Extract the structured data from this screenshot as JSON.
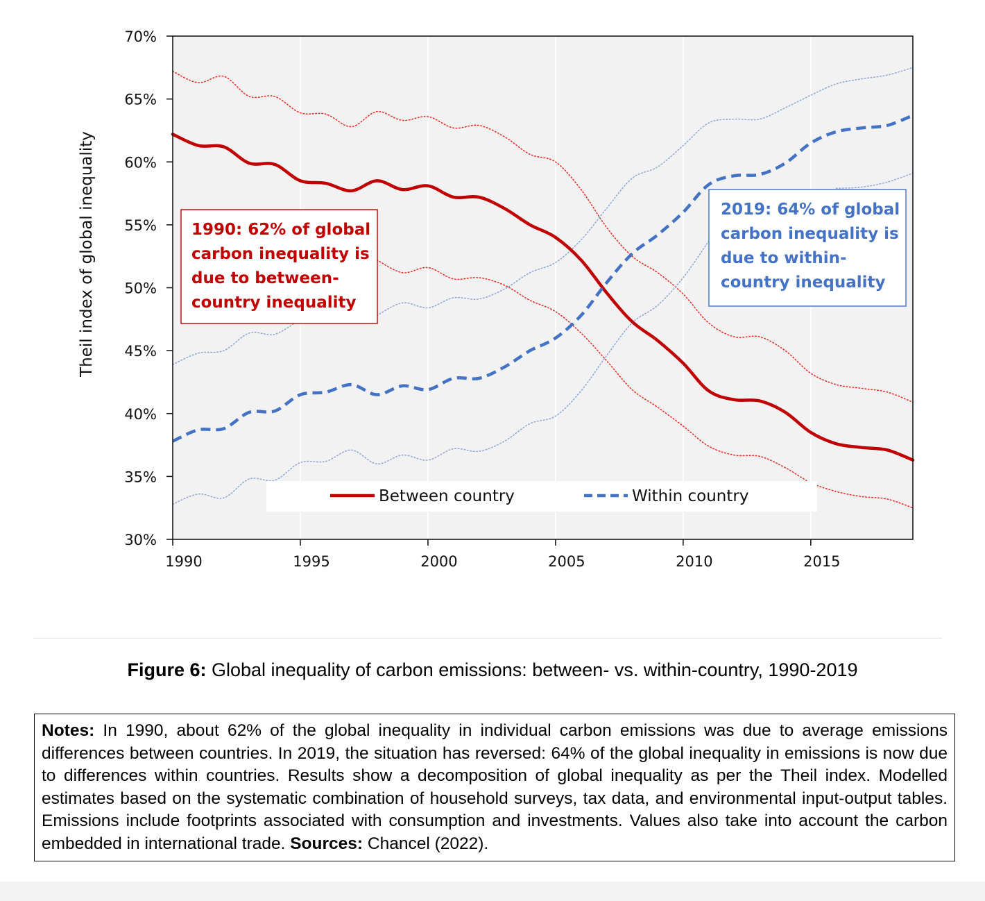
{
  "chart_data": {
    "type": "line",
    "title": "",
    "xlabel": "",
    "ylabel": "Theil index of global inequality",
    "xlim": [
      1990,
      2019
    ],
    "ylim": [
      30,
      70
    ],
    "x_ticks": [
      "1990",
      "1995",
      "2000",
      "2005",
      "2010",
      "2015"
    ],
    "y_ticks": [
      "30%",
      "35%",
      "40%",
      "45%",
      "50%",
      "55%",
      "60%",
      "65%",
      "70%"
    ],
    "grid": "vertical",
    "legend_position": "bottom-center",
    "x": [
      1990,
      1991,
      1992,
      1993,
      1994,
      1995,
      1996,
      1997,
      1998,
      1999,
      2000,
      2001,
      2002,
      2003,
      2004,
      2005,
      2006,
      2007,
      2008,
      2009,
      2010,
      2011,
      2012,
      2013,
      2014,
      2015,
      2016,
      2017,
      2018,
      2019
    ],
    "series": [
      {
        "name": "Between country",
        "style": "solid",
        "color": "#c00000",
        "values": [
          62.2,
          61.3,
          61.2,
          59.9,
          59.8,
          58.5,
          58.3,
          57.7,
          58.5,
          57.8,
          58.1,
          57.2,
          57.2,
          56.3,
          55.0,
          54.0,
          52.2,
          49.6,
          47.3,
          45.8,
          44.0,
          41.8,
          41.1,
          41.0,
          40.1,
          38.5,
          37.6,
          37.3,
          37.1,
          36.3
        ]
      },
      {
        "name": "Within country",
        "style": "dashed",
        "color": "#4472c4",
        "values": [
          37.8,
          38.7,
          38.8,
          40.1,
          40.2,
          41.5,
          41.7,
          42.3,
          41.5,
          42.2,
          41.9,
          42.8,
          42.8,
          43.7,
          45.0,
          46.0,
          47.8,
          50.4,
          52.7,
          54.2,
          56.0,
          58.2,
          58.9,
          59.0,
          59.9,
          61.5,
          62.4,
          62.7,
          62.9,
          63.7
        ]
      },
      {
        "role": "upper bound",
        "of": "Between country",
        "style": "dotted",
        "color": "#e8322b",
        "values": [
          67.2,
          66.3,
          66.8,
          65.2,
          65.2,
          63.9,
          63.8,
          62.8,
          64.0,
          63.3,
          63.6,
          62.7,
          62.9,
          62.0,
          60.6,
          60.0,
          57.8,
          54.8,
          52.5,
          51.2,
          49.5,
          47.2,
          46.1,
          46.1,
          45.0,
          43.2,
          42.3,
          42.0,
          41.7,
          40.9
        ]
      },
      {
        "role": "lower bound",
        "of": "Between country",
        "style": "dotted",
        "color": "#e8322b",
        "values": [
          null,
          null,
          null,
          null,
          null,
          null,
          null,
          null,
          52.2,
          51.2,
          51.6,
          50.7,
          50.8,
          50.2,
          49.0,
          48.1,
          46.4,
          44.2,
          41.9,
          40.5,
          39.0,
          37.4,
          36.7,
          36.6,
          35.7,
          34.5,
          33.8,
          33.4,
          33.2,
          32.5
        ]
      },
      {
        "role": "upper bound",
        "of": "Within country",
        "style": "dotted",
        "color": "#8eaadb",
        "values": [
          43.9,
          44.8,
          45.0,
          46.4,
          46.3,
          47.5,
          null,
          null,
          47.8,
          48.8,
          48.4,
          49.2,
          49.1,
          49.9,
          51.2,
          52.0,
          53.8,
          56.3,
          58.7,
          59.6,
          61.3,
          63.1,
          63.4,
          63.4,
          64.3,
          65.3,
          66.2,
          66.6,
          66.9,
          67.5
        ]
      },
      {
        "role": "lower bound",
        "of": "Within country",
        "style": "dotted",
        "color": "#8eaadb",
        "values": [
          32.8,
          33.6,
          33.3,
          34.8,
          34.7,
          36.1,
          36.2,
          37.1,
          36.0,
          36.7,
          36.3,
          37.2,
          37.0,
          37.8,
          39.2,
          39.8,
          41.8,
          44.6,
          47.2,
          48.6,
          50.8,
          53.7,
          null,
          null,
          null,
          null,
          57.9,
          58.0,
          58.4,
          59.1
        ]
      }
    ],
    "annotations": [
      {
        "text_lines": [
          "1990: 62% of global",
          "carbon inequality is",
          "due to between-",
          "country inequality"
        ],
        "color": "#c00000"
      },
      {
        "text_lines": [
          "2019: 64% of global",
          "carbon inequality is",
          "due to within-",
          "country inequality"
        ],
        "color": "#4472c4"
      }
    ]
  },
  "caption": {
    "label": "Figure 6:",
    "text": " Global inequality of carbon emissions: between- vs. within-country, 1990-2019"
  },
  "notes": {
    "label": "Notes:",
    "text": " In 1990, about 62% of the global inequality in individual carbon emissions was due to average emissions differences between countries. In 2019, the situation has reversed: 64% of the global inequality in emissions is now due to differences within countries. Results show a decomposition of global inequality as per the Theil index. Modelled estimates based on the systematic combination of household surveys, tax data, and environmental input-output tables. Emissions include footprints associated with consumption and investments. Values also take into account the carbon embedded in international trade. ",
    "sources_label": "Sources:",
    "sources_text": " Chancel (2022)."
  }
}
